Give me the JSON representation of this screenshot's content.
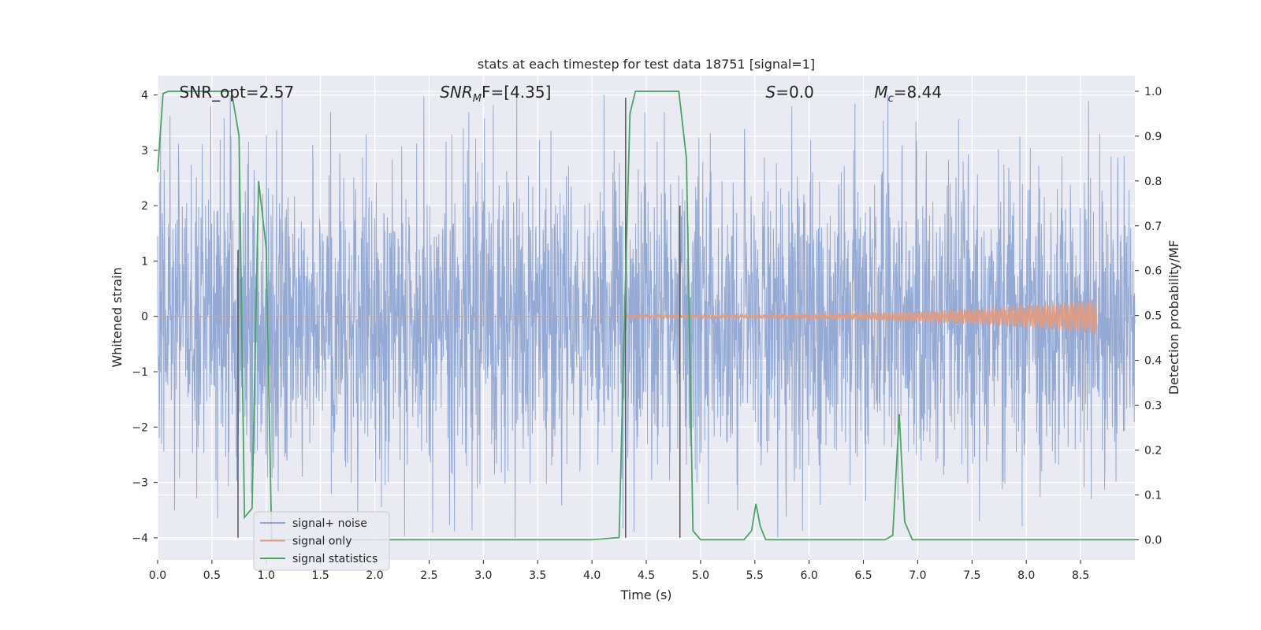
{
  "chart_data": {
    "type": "line",
    "title": "stats at each timestep for test data 18751 [signal=1]",
    "xlabel": "Time (s)",
    "ylabel": "Whitened strain",
    "y2label": "Detection probability/MF",
    "xlim": [
      0.0,
      9.0
    ],
    "ylim": [
      -4.4,
      4.35
    ],
    "y2lim": [
      -0.045,
      1.035
    ],
    "x_ticks": [
      0.0,
      0.5,
      1.0,
      1.5,
      2.0,
      2.5,
      3.0,
      3.5,
      4.0,
      4.5,
      5.0,
      5.5,
      6.0,
      6.5,
      7.0,
      7.5,
      8.0,
      8.5
    ],
    "y_ticks": [
      -4,
      -3,
      -2,
      -1,
      0,
      1,
      2,
      3,
      4
    ],
    "y2_ticks": [
      0.0,
      0.1,
      0.2,
      0.3,
      0.4,
      0.5,
      0.6,
      0.7,
      0.8,
      0.9,
      1.0
    ],
    "grid": true,
    "legend_position": "lower-left",
    "annotations": [
      {
        "text": "SNR_opt=2.57",
        "x": 0.2
      },
      {
        "text": "SNR",
        "sub": "M",
        "rest": "F=[4.35]",
        "x": 2.6,
        "italic": true
      },
      {
        "text": "S",
        "rest": "=0.0",
        "x": 5.6,
        "italic": true
      },
      {
        "text": "M",
        "sub": "c",
        "rest": "=8.44",
        "x": 6.6,
        "italic": true
      }
    ],
    "vertical_lines": [
      {
        "x": 0.74,
        "ymin": -4.0,
        "ymax": 1.2
      },
      {
        "x": 4.31,
        "ymin": -4.0,
        "ymax": 3.95
      },
      {
        "x": 4.81,
        "ymin": -4.0,
        "ymax": 2.0
      }
    ],
    "series": [
      {
        "name": "signal+ noise",
        "color": "#8fa6d2",
        "envelope": "random",
        "band_sd": 1.35,
        "peak_max": 4.0,
        "trough_min": -4.0
      },
      {
        "name": "signal only",
        "color": "#dd9c84",
        "envelope": "chirp",
        "start_x": 4.3,
        "end_x": 8.65,
        "amplitude_start": 0.03,
        "amplitude_end": 0.32
      },
      {
        "name": "signal statistics",
        "color": "#4aa564",
        "axis": "right",
        "x": [
          0.0,
          0.05,
          0.1,
          0.15,
          0.2,
          0.3,
          0.4,
          0.5,
          0.6,
          0.68,
          0.75,
          0.8,
          0.87,
          0.93,
          1.0,
          1.05,
          1.1,
          1.2,
          1.5,
          2.0,
          2.5,
          3.0,
          3.5,
          4.0,
          4.25,
          4.3,
          4.35,
          4.4,
          4.5,
          4.8,
          4.87,
          4.93,
          5.0,
          5.1,
          5.4,
          5.47,
          5.51,
          5.55,
          5.6,
          5.7,
          6.0,
          6.5,
          6.7,
          6.77,
          6.83,
          6.88,
          6.95,
          7.1,
          8.0,
          9.0
        ],
        "values": [
          0.82,
          0.995,
          1.0,
          1.0,
          1.0,
          1.0,
          1.0,
          1.0,
          1.0,
          1.0,
          0.9,
          0.05,
          0.07,
          0.8,
          0.65,
          0.0,
          0.0,
          0.0,
          0.0,
          0.0,
          0.0,
          0.0,
          0.0,
          0.0,
          0.005,
          0.5,
          0.95,
          1.0,
          1.0,
          1.0,
          0.85,
          0.02,
          0.0,
          0.0,
          0.0,
          0.02,
          0.08,
          0.03,
          0.0,
          0.0,
          0.0,
          0.0,
          0.0,
          0.01,
          0.28,
          0.04,
          0.0,
          0.0,
          0.0,
          0.0
        ]
      }
    ]
  }
}
